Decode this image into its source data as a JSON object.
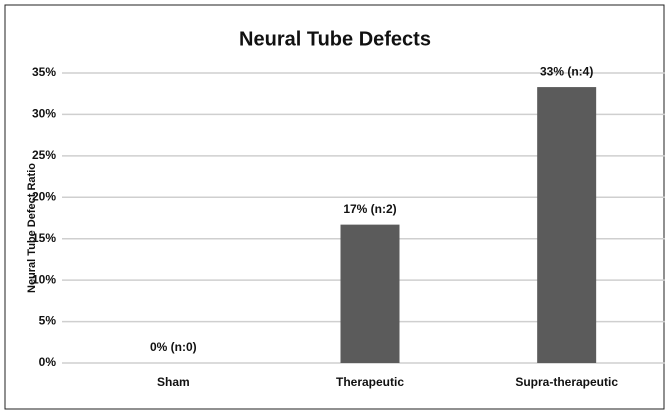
{
  "chart_data": {
    "type": "bar",
    "title": "Neural Tube Defects",
    "y_axis_label": "Neural Tube Defect Ratio",
    "categories": [
      "Sham",
      "Therapeutic",
      "Supra-therapeutic"
    ],
    "values": [
      0,
      16.7,
      33.3
    ],
    "value_labels": [
      "0% (n:0)",
      "17% (n:2)",
      "33% (n:4)"
    ],
    "color": "#5b5b5b",
    "ylim": [
      0,
      35
    ],
    "yticks": [
      {
        "value": 0,
        "label": "0%"
      },
      {
        "value": 5,
        "label": "5%"
      },
      {
        "value": 10,
        "label": "10%"
      },
      {
        "value": 15,
        "label": "15%"
      },
      {
        "value": 20,
        "label": "20%"
      },
      {
        "value": 25,
        "label": "25%"
      },
      {
        "value": 30,
        "label": "30%"
      },
      {
        "value": 35,
        "label": "35%"
      }
    ],
    "grid": true
  }
}
